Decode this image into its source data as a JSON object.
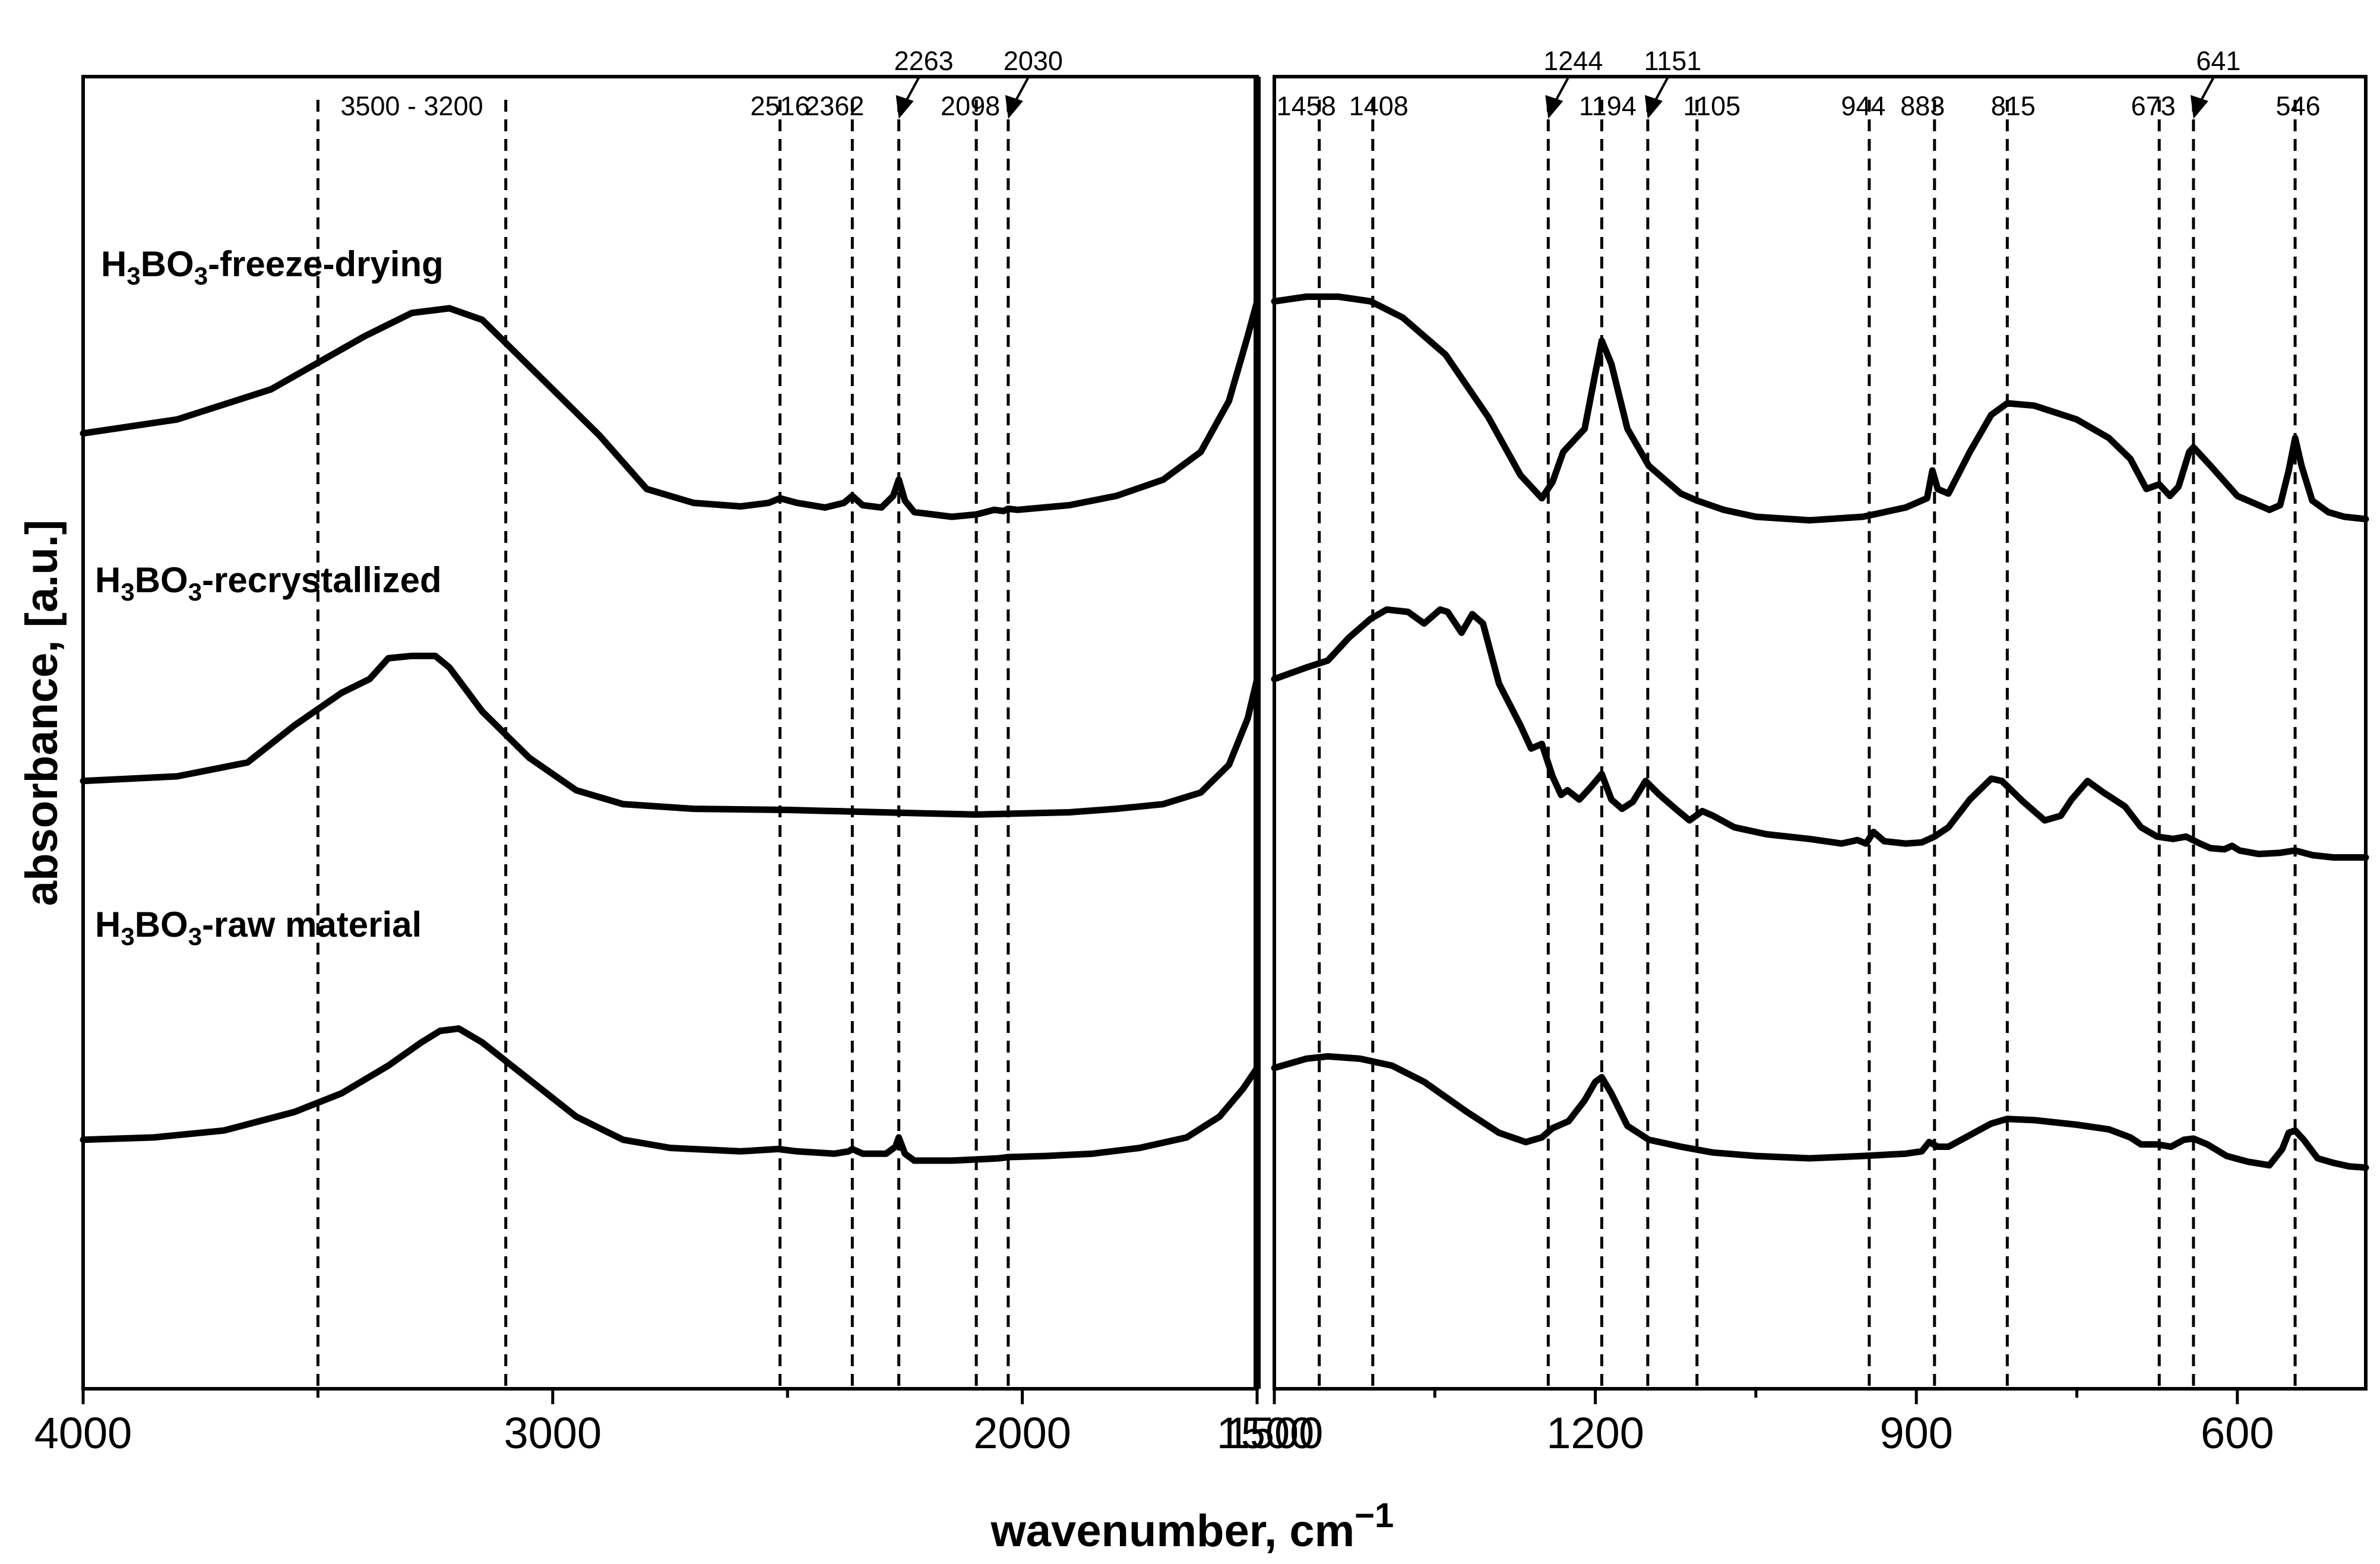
{
  "chart_data": {
    "type": "line",
    "xlabel": "wavenumber, cm",
    "xlabel_superscript": "−1",
    "ylabel": "absorbance, [a.u.]",
    "panels": [
      {
        "name": "left",
        "xlim": [
          4000,
          1500
        ],
        "ticks": [
          4000,
          3000,
          2000
        ],
        "minor_ticks": [
          3500,
          2500
        ]
      },
      {
        "name": "right",
        "xlim": [
          1500,
          480
        ],
        "ticks": [
          1500,
          1200,
          900,
          600
        ],
        "minor_ticks": [
          1350,
          1050,
          750
        ]
      }
    ],
    "shared_tick_label": "1500",
    "annotation_lines": [
      {
        "x": 3500,
        "label": ""
      },
      {
        "x": 3100,
        "label": ""
      },
      {
        "x": 2516,
        "label": "2516"
      },
      {
        "x": 2362,
        "label": "2362"
      },
      {
        "x": 2263,
        "label": "2263",
        "arrow": true
      },
      {
        "x": 2098,
        "label": "2098"
      },
      {
        "x": 2030,
        "label": "2030",
        "arrow": true
      },
      {
        "x": 1458,
        "label": "1458"
      },
      {
        "x": 1408,
        "label": "1408"
      },
      {
        "x": 1244,
        "label": "1244",
        "arrow": true
      },
      {
        "x": 1194,
        "label": "1194"
      },
      {
        "x": 1151,
        "label": "1151",
        "arrow": true
      },
      {
        "x": 1105,
        "label": "1105"
      },
      {
        "x": 944,
        "label": "944"
      },
      {
        "x": 883,
        "label": "883"
      },
      {
        "x": 815,
        "label": "815"
      },
      {
        "x": 673,
        "label": "673"
      },
      {
        "x": 641,
        "label": "641",
        "arrow": true
      },
      {
        "x": 546,
        "label": "546"
      }
    ],
    "range_label": {
      "text": "3500 - 3200",
      "center": 3300
    },
    "series": [
      {
        "name": "H3BO3-freeze-drying",
        "label_main": "H",
        "label_sub1": "3",
        "label_mid": "BO",
        "label_sub2": "3",
        "label_tail": "-freeze-drying",
        "left": [
          [
            4000,
            0.36
          ],
          [
            3800,
            0.42
          ],
          [
            3600,
            0.55
          ],
          [
            3400,
            0.78
          ],
          [
            3300,
            0.88
          ],
          [
            3220,
            0.9
          ],
          [
            3150,
            0.85
          ],
          [
            3050,
            0.65
          ],
          [
            2900,
            0.35
          ],
          [
            2800,
            0.12
          ],
          [
            2700,
            0.06
          ],
          [
            2600,
            0.045
          ],
          [
            2540,
            0.06
          ],
          [
            2516,
            0.08
          ],
          [
            2480,
            0.06
          ],
          [
            2420,
            0.04
          ],
          [
            2380,
            0.06
          ],
          [
            2362,
            0.09
          ],
          [
            2340,
            0.05
          ],
          [
            2300,
            0.04
          ],
          [
            2275,
            0.09
          ],
          [
            2263,
            0.16
          ],
          [
            2250,
            0.07
          ],
          [
            2230,
            0.02
          ],
          [
            2150,
            0.0
          ],
          [
            2098,
            0.01
          ],
          [
            2060,
            0.03
          ],
          [
            2040,
            0.025
          ],
          [
            2030,
            0.035
          ],
          [
            2010,
            0.03
          ],
          [
            1900,
            0.05
          ],
          [
            1800,
            0.09
          ],
          [
            1700,
            0.16
          ],
          [
            1620,
            0.28
          ],
          [
            1560,
            0.5
          ],
          [
            1520,
            0.78
          ],
          [
            1500,
            0.93
          ]
        ],
        "right": [
          [
            1500,
            0.93
          ],
          [
            1470,
            0.95
          ],
          [
            1440,
            0.95
          ],
          [
            1410,
            0.93
          ],
          [
            1380,
            0.86
          ],
          [
            1340,
            0.7
          ],
          [
            1300,
            0.43
          ],
          [
            1270,
            0.18
          ],
          [
            1250,
            0.08
          ],
          [
            1240,
            0.15
          ],
          [
            1230,
            0.28
          ],
          [
            1210,
            0.38
          ],
          [
            1200,
            0.62
          ],
          [
            1194,
            0.76
          ],
          [
            1185,
            0.66
          ],
          [
            1170,
            0.38
          ],
          [
            1150,
            0.22
          ],
          [
            1120,
            0.1
          ],
          [
            1105,
            0.07
          ],
          [
            1080,
            0.03
          ],
          [
            1050,
            0.0
          ],
          [
            1000,
            -0.015
          ],
          [
            950,
            0.0
          ],
          [
            910,
            0.04
          ],
          [
            890,
            0.08
          ],
          [
            885,
            0.2
          ],
          [
            880,
            0.12
          ],
          [
            870,
            0.1
          ],
          [
            850,
            0.28
          ],
          [
            830,
            0.44
          ],
          [
            815,
            0.49
          ],
          [
            790,
            0.48
          ],
          [
            750,
            0.42
          ],
          [
            720,
            0.34
          ],
          [
            700,
            0.25
          ],
          [
            685,
            0.12
          ],
          [
            673,
            0.14
          ],
          [
            663,
            0.09
          ],
          [
            655,
            0.13
          ],
          [
            645,
            0.28
          ],
          [
            641,
            0.3
          ],
          [
            625,
            0.22
          ],
          [
            600,
            0.09
          ],
          [
            570,
            0.03
          ],
          [
            560,
            0.05
          ],
          [
            552,
            0.2
          ],
          [
            546,
            0.34
          ],
          [
            540,
            0.22
          ],
          [
            530,
            0.07
          ],
          [
            515,
            0.02
          ],
          [
            500,
            0.0
          ],
          [
            480,
            -0.01
          ]
        ]
      },
      {
        "name": "H3BO3-recrystallized",
        "label_main": "H",
        "label_sub1": "3",
        "label_mid": "BO",
        "label_sub2": "3",
        "label_tail": "-recrystallized",
        "left": [
          [
            4000,
            0.18
          ],
          [
            3800,
            0.2
          ],
          [
            3650,
            0.26
          ],
          [
            3550,
            0.42
          ],
          [
            3450,
            0.56
          ],
          [
            3390,
            0.62
          ],
          [
            3350,
            0.71
          ],
          [
            3300,
            0.72
          ],
          [
            3250,
            0.72
          ],
          [
            3220,
            0.67
          ],
          [
            3150,
            0.48
          ],
          [
            3050,
            0.28
          ],
          [
            2950,
            0.14
          ],
          [
            2850,
            0.08
          ],
          [
            2700,
            0.06
          ],
          [
            2500,
            0.055
          ],
          [
            2300,
            0.045
          ],
          [
            2100,
            0.035
          ],
          [
            2000,
            0.04
          ],
          [
            1900,
            0.045
          ],
          [
            1800,
            0.06
          ],
          [
            1700,
            0.08
          ],
          [
            1620,
            0.13
          ],
          [
            1560,
            0.25
          ],
          [
            1520,
            0.45
          ],
          [
            1500,
            0.62
          ]
        ],
        "right": [
          [
            1500,
            0.62
          ],
          [
            1470,
            0.67
          ],
          [
            1450,
            0.7
          ],
          [
            1430,
            0.8
          ],
          [
            1410,
            0.88
          ],
          [
            1395,
            0.92
          ],
          [
            1375,
            0.91
          ],
          [
            1360,
            0.86
          ],
          [
            1345,
            0.92
          ],
          [
            1338,
            0.91
          ],
          [
            1325,
            0.82
          ],
          [
            1315,
            0.9
          ],
          [
            1305,
            0.86
          ],
          [
            1290,
            0.6
          ],
          [
            1270,
            0.42
          ],
          [
            1260,
            0.32
          ],
          [
            1250,
            0.34
          ],
          [
            1240,
            0.2
          ],
          [
            1232,
            0.12
          ],
          [
            1226,
            0.14
          ],
          [
            1215,
            0.1
          ],
          [
            1205,
            0.15
          ],
          [
            1194,
            0.21
          ],
          [
            1185,
            0.1
          ],
          [
            1175,
            0.06
          ],
          [
            1165,
            0.09
          ],
          [
            1153,
            0.18
          ],
          [
            1140,
            0.12
          ],
          [
            1125,
            0.06
          ],
          [
            1112,
            0.01
          ],
          [
            1100,
            0.05
          ],
          [
            1090,
            0.03
          ],
          [
            1070,
            -0.02
          ],
          [
            1040,
            -0.05
          ],
          [
            1000,
            -0.07
          ],
          [
            970,
            -0.09
          ],
          [
            955,
            -0.075
          ],
          [
            947,
            -0.09
          ],
          [
            940,
            -0.04
          ],
          [
            930,
            -0.08
          ],
          [
            910,
            -0.09
          ],
          [
            895,
            -0.085
          ],
          [
            883,
            -0.06
          ],
          [
            870,
            -0.02
          ],
          [
            850,
            0.1
          ],
          [
            830,
            0.19
          ],
          [
            820,
            0.18
          ],
          [
            800,
            0.09
          ],
          [
            780,
            0.01
          ],
          [
            765,
            0.03
          ],
          [
            755,
            0.1
          ],
          [
            740,
            0.18
          ],
          [
            725,
            0.13
          ],
          [
            705,
            0.07
          ],
          [
            690,
            -0.02
          ],
          [
            675,
            -0.06
          ],
          [
            660,
            -0.07
          ],
          [
            648,
            -0.06
          ],
          [
            635,
            -0.09
          ],
          [
            625,
            -0.11
          ],
          [
            612,
            -0.115
          ],
          [
            605,
            -0.1
          ],
          [
            598,
            -0.12
          ],
          [
            580,
            -0.135
          ],
          [
            560,
            -0.13
          ],
          [
            546,
            -0.12
          ],
          [
            530,
            -0.14
          ],
          [
            510,
            -0.15
          ],
          [
            480,
            -0.15
          ]
        ]
      },
      {
        "name": "H3BO3-raw material",
        "label_main": "H",
        "label_sub1": "3",
        "label_mid": "BO",
        "label_sub2": "3",
        "label_tail": "-raw material",
        "left": [
          [
            4000,
            0.08
          ],
          [
            3850,
            0.09
          ],
          [
            3700,
            0.12
          ],
          [
            3550,
            0.2
          ],
          [
            3450,
            0.28
          ],
          [
            3350,
            0.4
          ],
          [
            3280,
            0.5
          ],
          [
            3240,
            0.55
          ],
          [
            3200,
            0.56
          ],
          [
            3150,
            0.5
          ],
          [
            3050,
            0.34
          ],
          [
            2950,
            0.18
          ],
          [
            2850,
            0.08
          ],
          [
            2750,
            0.045
          ],
          [
            2600,
            0.03
          ],
          [
            2520,
            0.04
          ],
          [
            2480,
            0.03
          ],
          [
            2400,
            0.02
          ],
          [
            2370,
            0.03
          ],
          [
            2362,
            0.04
          ],
          [
            2340,
            0.02
          ],
          [
            2290,
            0.02
          ],
          [
            2270,
            0.05
          ],
          [
            2263,
            0.09
          ],
          [
            2250,
            0.02
          ],
          [
            2230,
            -0.01
          ],
          [
            2150,
            -0.01
          ],
          [
            2100,
            -0.005
          ],
          [
            2050,
            0.0
          ],
          [
            2030,
            0.005
          ],
          [
            1950,
            0.01
          ],
          [
            1850,
            0.02
          ],
          [
            1750,
            0.045
          ],
          [
            1650,
            0.09
          ],
          [
            1580,
            0.18
          ],
          [
            1530,
            0.3
          ],
          [
            1500,
            0.39
          ]
        ],
        "right": [
          [
            1500,
            0.39
          ],
          [
            1470,
            0.43
          ],
          [
            1450,
            0.44
          ],
          [
            1420,
            0.43
          ],
          [
            1390,
            0.4
          ],
          [
            1360,
            0.33
          ],
          [
            1320,
            0.2
          ],
          [
            1290,
            0.11
          ],
          [
            1265,
            0.07
          ],
          [
            1250,
            0.09
          ],
          [
            1240,
            0.13
          ],
          [
            1225,
            0.16
          ],
          [
            1210,
            0.25
          ],
          [
            1200,
            0.33
          ],
          [
            1194,
            0.35
          ],
          [
            1185,
            0.28
          ],
          [
            1170,
            0.14
          ],
          [
            1150,
            0.08
          ],
          [
            1120,
            0.05
          ],
          [
            1090,
            0.025
          ],
          [
            1050,
            0.01
          ],
          [
            1000,
            0.0
          ],
          [
            950,
            0.01
          ],
          [
            910,
            0.02
          ],
          [
            895,
            0.03
          ],
          [
            888,
            0.07
          ],
          [
            880,
            0.05
          ],
          [
            870,
            0.05
          ],
          [
            850,
            0.1
          ],
          [
            830,
            0.15
          ],
          [
            815,
            0.17
          ],
          [
            790,
            0.165
          ],
          [
            750,
            0.145
          ],
          [
            720,
            0.125
          ],
          [
            700,
            0.09
          ],
          [
            690,
            0.06
          ],
          [
            675,
            0.06
          ],
          [
            662,
            0.05
          ],
          [
            650,
            0.08
          ],
          [
            641,
            0.085
          ],
          [
            628,
            0.06
          ],
          [
            610,
            0.01
          ],
          [
            590,
            -0.015
          ],
          [
            570,
            -0.03
          ],
          [
            558,
            0.04
          ],
          [
            552,
            0.11
          ],
          [
            546,
            0.12
          ],
          [
            538,
            0.08
          ],
          [
            525,
            0.0
          ],
          [
            510,
            -0.02
          ],
          [
            495,
            -0.035
          ],
          [
            480,
            -0.04
          ]
        ]
      }
    ]
  }
}
